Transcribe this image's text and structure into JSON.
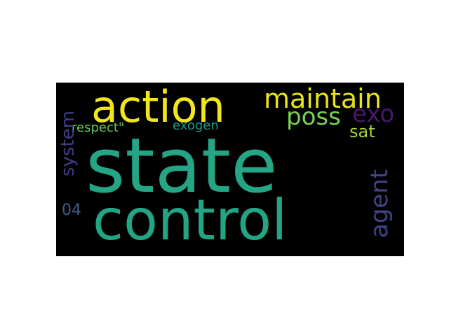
{
  "wordcloud": {
    "background": "#000000",
    "page_background": "#ffffff",
    "words": {
      "state": {
        "text": "state",
        "color": "#24a585"
      },
      "control": {
        "text": "control",
        "color": "#21a585"
      },
      "action": {
        "text": "action",
        "color": "#f1e51d"
      },
      "maintain": {
        "text": "maintain",
        "color": "#e7e419"
      },
      "poss": {
        "text": "poss",
        "color": "#7ad151"
      },
      "exo": {
        "text": "exo",
        "color": "#46186b"
      },
      "sat": {
        "text": "sat",
        "color": "#a7d63a"
      },
      "respect": {
        "text": "respect\"",
        "color": "#66c95a"
      },
      "exogen": {
        "text": "exogen",
        "color": "#1e9b8a"
      },
      "n04": {
        "text": "04",
        "color": "#3e5f8e"
      },
      "system": {
        "text": "system",
        "color": "#3f3e86"
      },
      "agent": {
        "text": "agent",
        "color": "#414487"
      }
    }
  }
}
